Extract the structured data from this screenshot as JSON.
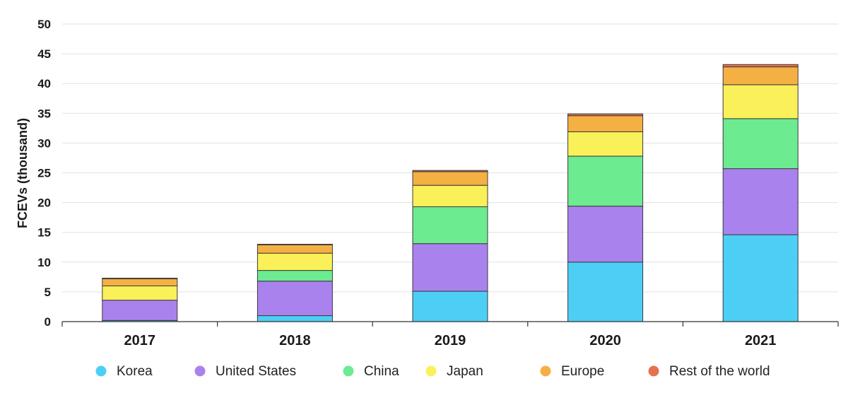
{
  "chart_data": {
    "type": "bar",
    "stacked": true,
    "title": "",
    "xlabel": "",
    "ylabel": "FCEVs (thousand)",
    "ylim": [
      0,
      50
    ],
    "yticks": [
      "0",
      "5",
      "10",
      "15",
      "20",
      "25",
      "30",
      "35",
      "40",
      "45",
      "50"
    ],
    "grid": true,
    "legend_position": "bottom",
    "categories": [
      "2017",
      "2018",
      "2019",
      "2020",
      "2021"
    ],
    "series": [
      {
        "name": "Korea",
        "color": "#4dcff5",
        "values": [
          0.2,
          1.0,
          5.1,
          10.0,
          14.6
        ]
      },
      {
        "name": "United States",
        "color": "#aa82ee",
        "values": [
          3.4,
          5.8,
          8.0,
          9.4,
          11.1
        ]
      },
      {
        "name": "China",
        "color": "#6ceb91",
        "values": [
          0.0,
          1.8,
          6.2,
          8.4,
          8.4
        ]
      },
      {
        "name": "Japan",
        "color": "#faf05a",
        "values": [
          2.4,
          2.9,
          3.6,
          4.1,
          5.7
        ]
      },
      {
        "name": "Europe",
        "color": "#f5b044",
        "values": [
          1.2,
          1.4,
          2.3,
          2.7,
          3.0
        ]
      },
      {
        "name": "Rest of the world",
        "color": "#e8704e",
        "values": [
          0.1,
          0.1,
          0.2,
          0.3,
          0.4
        ]
      }
    ]
  }
}
